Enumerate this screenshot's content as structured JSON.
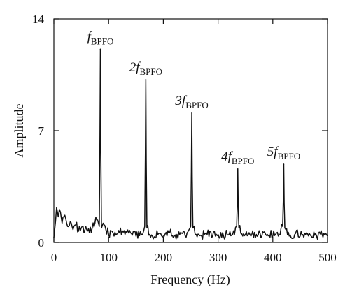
{
  "chart_data": {
    "type": "line",
    "xlabel": "Frequency (Hz)",
    "ylabel": "Amplitude",
    "xlim": [
      0,
      500
    ],
    "ylim": [
      0,
      14
    ],
    "xticks": [
      0,
      100,
      200,
      300,
      400,
      500
    ],
    "yticks": [
      0,
      7,
      14
    ],
    "grid": false,
    "peaks": [
      {
        "x": 85,
        "y": 12.1
      },
      {
        "x": 168,
        "y": 10.2
      },
      {
        "x": 252,
        "y": 8.1
      },
      {
        "x": 336,
        "y": 4.6
      },
      {
        "x": 420,
        "y": 4.9
      }
    ],
    "annotations": [
      {
        "prefix": "",
        "main": "f",
        "sub": "BPFO",
        "x": 85,
        "y": 12.1
      },
      {
        "prefix": "2",
        "main": "f",
        "sub": "BPFO",
        "x": 168,
        "y": 10.2
      },
      {
        "prefix": "3",
        "main": "f",
        "sub": "BPFO",
        "x": 252,
        "y": 8.1
      },
      {
        "prefix": "4",
        "main": "f",
        "sub": "BPFO",
        "x": 336,
        "y": 4.6
      },
      {
        "prefix": "5",
        "main": "f",
        "sub": "BPFO",
        "x": 420,
        "y": 4.9
      }
    ],
    "noise_floor": [
      [
        0,
        0.3
      ],
      [
        3,
        1.3
      ],
      [
        5,
        2.2
      ],
      [
        8,
        1.6
      ],
      [
        12,
        1.9
      ],
      [
        15,
        1.2
      ],
      [
        20,
        1.7
      ],
      [
        25,
        1.0
      ],
      [
        30,
        1.3
      ],
      [
        35,
        0.8
      ],
      [
        40,
        1.1
      ],
      [
        45,
        0.7
      ],
      [
        50,
        0.9
      ],
      [
        55,
        0.6
      ],
      [
        60,
        0.8
      ],
      [
        65,
        0.6
      ],
      [
        70,
        0.9
      ],
      [
        75,
        1.2
      ],
      [
        80,
        1.4
      ],
      [
        90,
        1.2
      ],
      [
        95,
        0.8
      ],
      [
        100,
        0.5
      ],
      [
        110,
        0.4
      ],
      [
        120,
        0.6
      ],
      [
        130,
        0.5
      ],
      [
        140,
        0.6
      ],
      [
        150,
        0.4
      ],
      [
        160,
        0.5
      ],
      [
        175,
        0.5
      ],
      [
        180,
        0.4
      ],
      [
        190,
        0.5
      ],
      [
        200,
        0.4
      ],
      [
        210,
        0.6
      ],
      [
        220,
        0.4
      ],
      [
        230,
        0.5
      ],
      [
        240,
        0.4
      ],
      [
        260,
        0.5
      ],
      [
        270,
        0.4
      ],
      [
        280,
        0.5
      ],
      [
        290,
        0.4
      ],
      [
        300,
        0.5
      ],
      [
        310,
        0.4
      ],
      [
        320,
        0.5
      ],
      [
        330,
        0.5
      ],
      [
        345,
        0.4
      ],
      [
        350,
        0.5
      ],
      [
        360,
        0.4
      ],
      [
        370,
        0.5
      ],
      [
        380,
        0.4
      ],
      [
        390,
        0.5
      ],
      [
        400,
        0.4
      ],
      [
        410,
        0.4
      ],
      [
        430,
        0.4
      ],
      [
        440,
        0.5
      ],
      [
        450,
        0.4
      ],
      [
        460,
        0.5
      ],
      [
        470,
        0.4
      ],
      [
        480,
        0.4
      ],
      [
        490,
        0.5
      ],
      [
        500,
        0.4
      ]
    ]
  }
}
